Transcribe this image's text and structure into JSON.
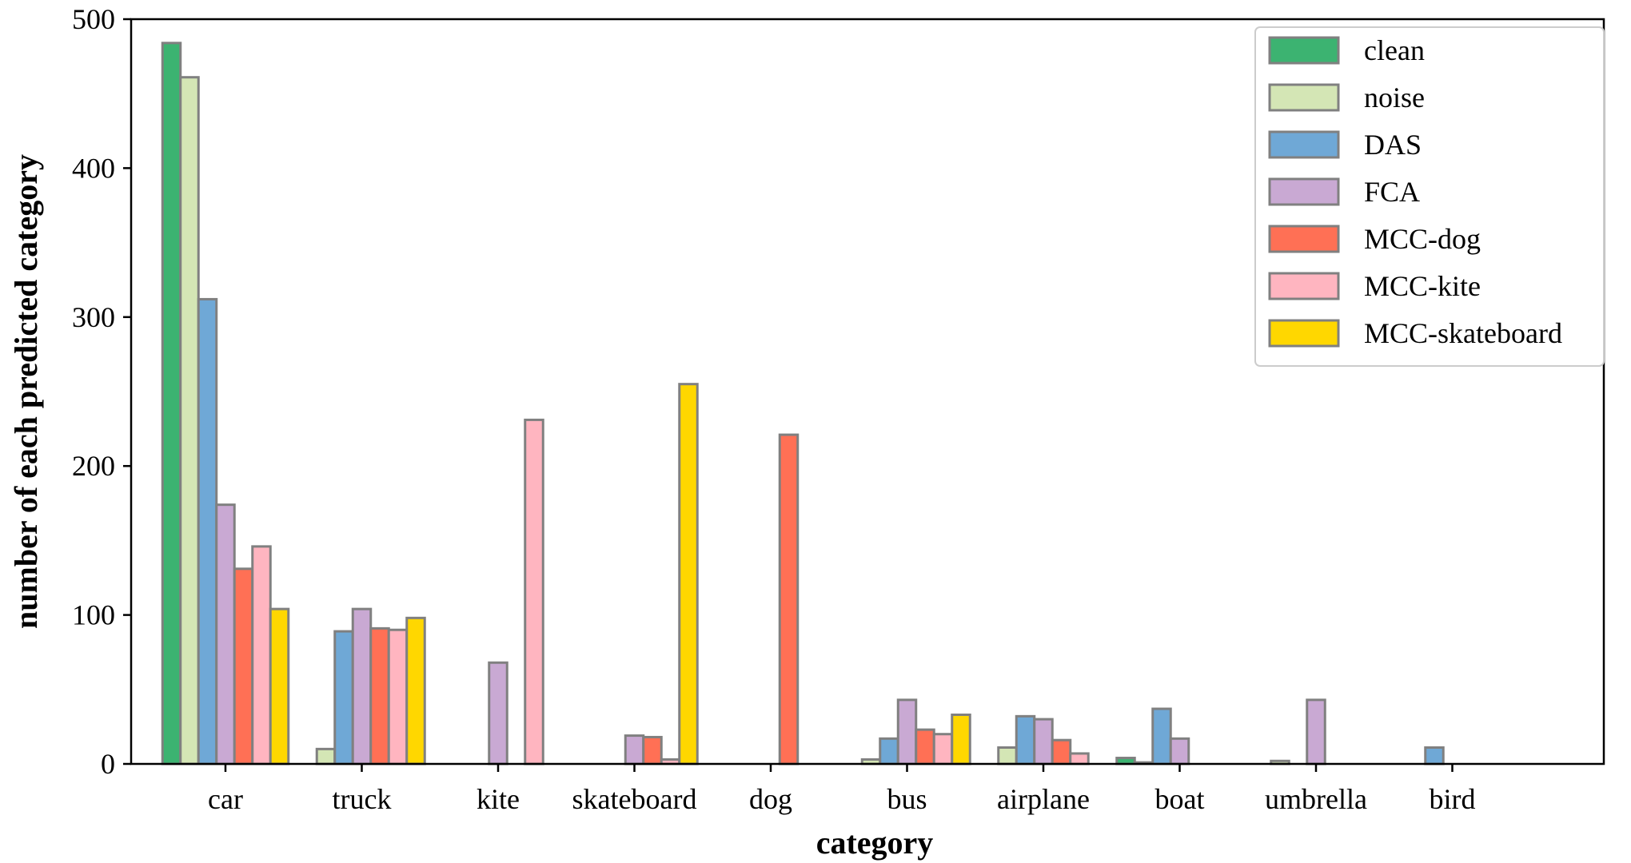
{
  "chart_data": {
    "type": "bar",
    "xlabel": "category",
    "ylabel": "number of each predicted category",
    "ylim": [
      0,
      500
    ],
    "yticks": [
      0,
      100,
      200,
      300,
      400,
      500
    ],
    "legend_position": "top-right",
    "grid": false,
    "categories": [
      "car",
      "truck",
      "kite",
      "skateboard",
      "dog",
      "bus",
      "airplane",
      "boat",
      "umbrella",
      "bird"
    ],
    "series": [
      {
        "name": "clean",
        "color": "#3cb371",
        "values": [
          484,
          0,
          0,
          0,
          0,
          0,
          0,
          4,
          0,
          0
        ]
      },
      {
        "name": "noise",
        "color": "#d4e6b5",
        "values": [
          461,
          10,
          0,
          0,
          0,
          3,
          11,
          1,
          2,
          0
        ]
      },
      {
        "name": "DAS",
        "color": "#6fa8d6",
        "values": [
          312,
          89,
          0,
          0,
          0,
          17,
          32,
          37,
          0,
          11
        ]
      },
      {
        "name": "FCA",
        "color": "#c9a9d3",
        "values": [
          174,
          104,
          68,
          19,
          0,
          43,
          30,
          17,
          43,
          0
        ]
      },
      {
        "name": "MCC-dog",
        "color": "#ff7055",
        "values": [
          131,
          91,
          0,
          18,
          221,
          23,
          16,
          0,
          0,
          0
        ]
      },
      {
        "name": "MCC-kite",
        "color": "#ffb5c0",
        "values": [
          146,
          90,
          231,
          3,
          0,
          20,
          7,
          0,
          0,
          0
        ]
      },
      {
        "name": "MCC-skateboard",
        "color": "#ffd700",
        "values": [
          104,
          98,
          0,
          255,
          0,
          33,
          0,
          0,
          0,
          0
        ]
      }
    ]
  },
  "style": {
    "bar_edge": "#808080"
  }
}
